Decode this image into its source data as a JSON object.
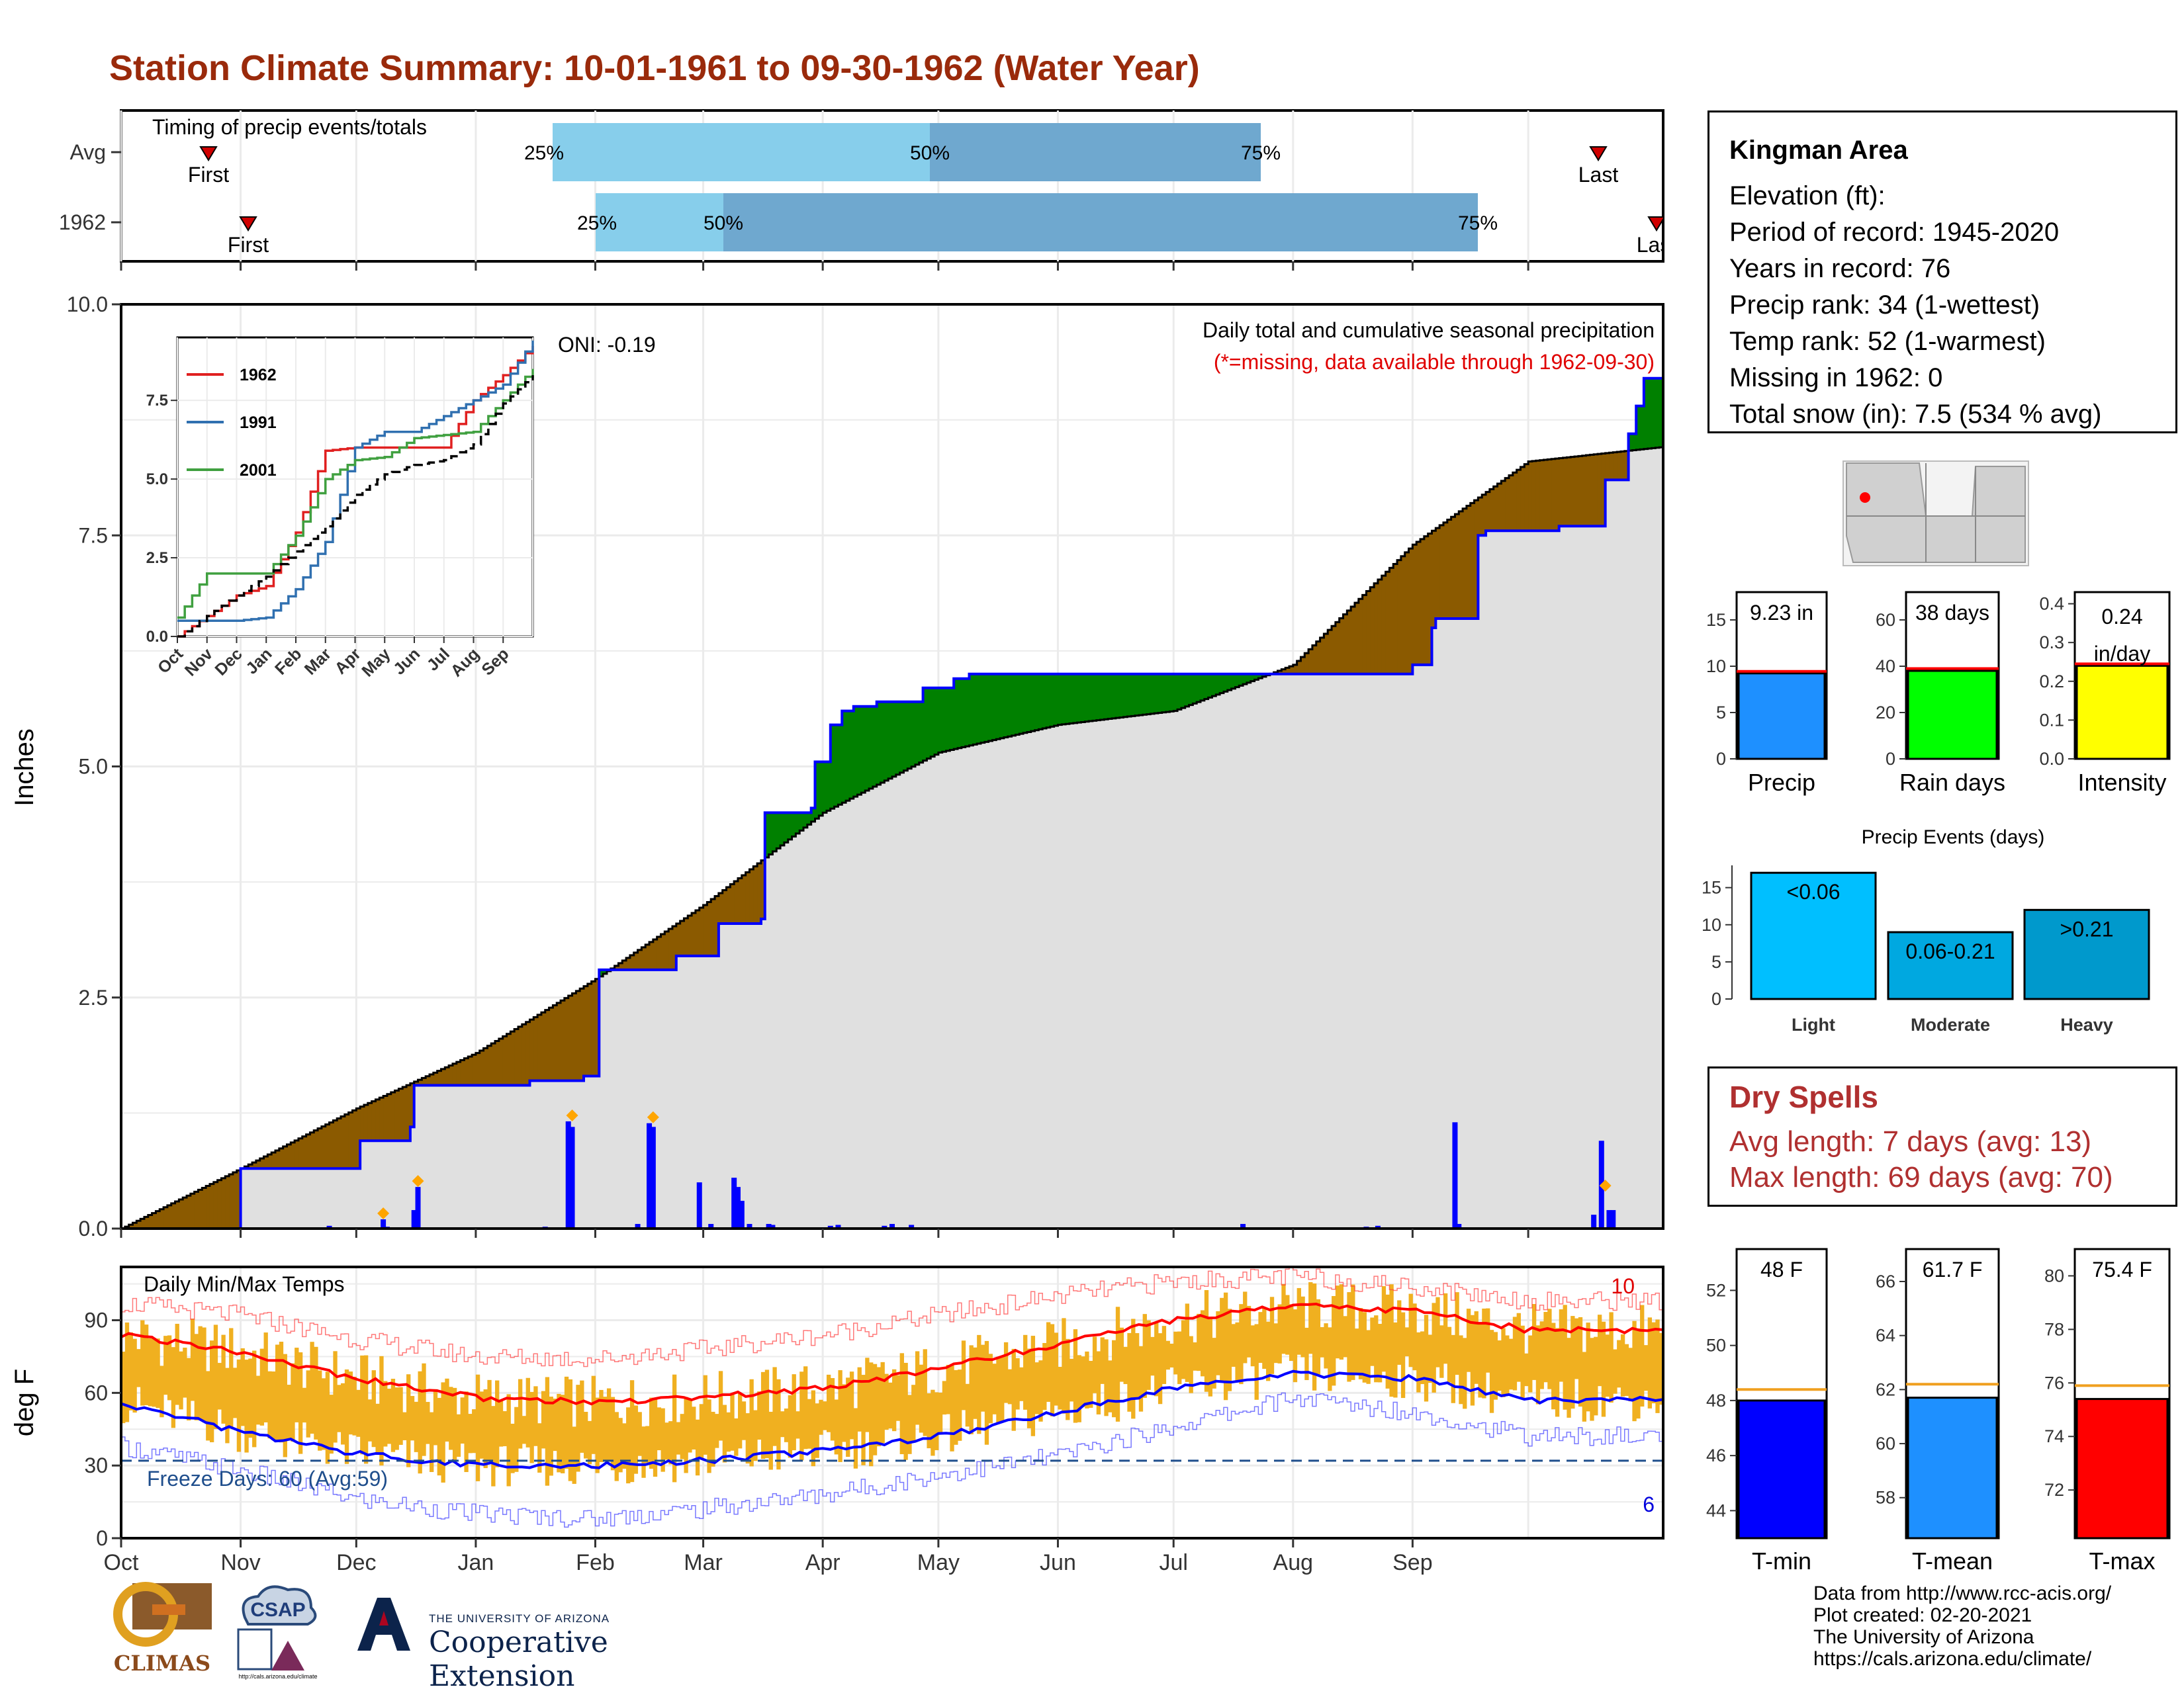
{
  "title": "Station Climate Summary: 10-01-1961 to 09-30-1962 (Water Year)",
  "timing": {
    "label": "Timing of precip events/totals",
    "rows": [
      {
        "name": "Avg",
        "first": "First",
        "last": "Last",
        "p25": "25%",
        "p50": "50%",
        "p75": "75%"
      },
      {
        "name": "1962",
        "first": "First",
        "last": "Last",
        "p25": "25%",
        "p50": "50%",
        "p75": "75%"
      }
    ]
  },
  "info": {
    "station": "Kingman Area",
    "elevation": "Elevation (ft):",
    "period": "Period of record: 1945-2020",
    "years": "Years in record: 76",
    "precip_rank": "Precip rank: 34 (1-wettest)",
    "temp_rank": "Temp rank: 52 (1-warmest)",
    "missing": "Missing in 1962: 0",
    "snow": "Total snow (in): 7.5 (534 % avg)"
  },
  "dry_spells": {
    "title": "Dry Spells",
    "avg": "Avg length: 7 days (avg: 13)",
    "max": "Max length: 69 days (avg: 70)"
  },
  "footer": {
    "line1": "Data from http://www.rcc-acis.org/",
    "line2": "Plot created: 02-20-2021",
    "line3": "The University of Arizona",
    "line4": "https://cals.arizona.edu/climate/"
  },
  "logos": {
    "climas": "CLIMAS",
    "csap": "CSAP",
    "csap_url": "http://cals.arizona.edu/climate",
    "ua_small": "THE UNIVERSITY OF ARIZONA",
    "ua_big": "Cooperative Extension"
  },
  "colors": {
    "title": "#9a2a0b",
    "surplus": "#008000",
    "deficit": "#8b5a00",
    "cum_line": "#0000ff",
    "normal_fill": "#e0e0e0",
    "daily_bar": "#0000ff",
    "temp_bar": "#f0b020",
    "tmax_avg": "#ff0000",
    "tmin_avg": "#0000ff",
    "q_light": "#87ceeb",
    "q_dark": "#6fa8cf"
  },
  "chart_data": [
    {
      "id": "precip",
      "type": "area",
      "ylabel": "Inches",
      "ylim": [
        0,
        10
      ],
      "yticks": [
        "0.0",
        "2.5",
        "5.0",
        "7.5",
        "10.0"
      ],
      "annotation1": "Daily total and cumulative seasonal precipitation",
      "annotation2": "(*=missing, data available through 1962-09-30)",
      "oni": "ONI: -0.19",
      "normal_cumulative_by_month": [
        0,
        0.65,
        1.3,
        1.9,
        2.7,
        3.5,
        4.5,
        5.15,
        5.45,
        5.6,
        6.1,
        7.4,
        8.3
      ],
      "cumulative_1962_steps": [
        [
          0,
          0
        ],
        [
          31,
          0.65
        ],
        [
          62,
          0.95
        ],
        [
          75,
          1.1
        ],
        [
          76,
          1.55
        ],
        [
          105,
          1.55
        ],
        [
          106,
          1.6
        ],
        [
          120,
          1.65
        ],
        [
          124,
          2.8
        ],
        [
          143,
          2.8
        ],
        [
          144,
          2.95
        ],
        [
          154,
          2.95
        ],
        [
          155,
          3.3
        ],
        [
          166,
          3.35
        ],
        [
          167,
          4.5
        ],
        [
          179,
          4.55
        ],
        [
          180,
          5.05
        ],
        [
          184,
          5.45
        ],
        [
          187,
          5.6
        ],
        [
          190,
          5.65
        ],
        [
          196,
          5.7
        ],
        [
          208,
          5.85
        ],
        [
          216,
          5.95
        ],
        [
          220,
          6.0
        ],
        [
          300,
          6.0
        ],
        [
          335,
          6.1
        ],
        [
          340,
          6.5
        ],
        [
          341,
          6.6
        ],
        [
          352,
          7.5
        ],
        [
          354,
          7.55
        ],
        [
          372,
          7.55
        ],
        [
          373,
          7.6
        ],
        [
          385,
          8.1
        ],
        [
          391,
          8.6
        ],
        [
          393,
          8.9
        ],
        [
          395,
          9.2
        ],
        [
          400,
          9.23
        ]
      ],
      "daily_bars": [
        {
          "day": 54,
          "v": 0.03
        },
        {
          "day": 68,
          "v": 0.1
        },
        {
          "day": 69,
          "v": 0.02
        },
        {
          "day": 74,
          "v": 0.01
        },
        {
          "day": 76,
          "v": 0.2
        },
        {
          "day": 77,
          "v": 0.45
        },
        {
          "day": 110,
          "v": 0.02
        },
        {
          "day": 116,
          "v": 1.16
        },
        {
          "day": 117,
          "v": 1.1
        },
        {
          "day": 134,
          "v": 0.05
        },
        {
          "day": 138,
          "v": 1.1
        },
        {
          "day": 137,
          "v": 1.14
        },
        {
          "day": 150,
          "v": 0.5
        },
        {
          "day": 153,
          "v": 0.05
        },
        {
          "day": 159,
          "v": 0.55
        },
        {
          "day": 160,
          "v": 0.45
        },
        {
          "day": 161,
          "v": 0.3
        },
        {
          "day": 163,
          "v": 0.05
        },
        {
          "day": 168,
          "v": 0.05
        },
        {
          "day": 169,
          "v": 0.04
        },
        {
          "day": 184,
          "v": 0.03
        },
        {
          "day": 186,
          "v": 0.04
        },
        {
          "day": 198,
          "v": 0.03
        },
        {
          "day": 200,
          "v": 0.05
        },
        {
          "day": 205,
          "v": 0.04
        },
        {
          "day": 291,
          "v": 0.05
        },
        {
          "day": 323,
          "v": 0.02
        },
        {
          "day": 326,
          "v": 0.03
        },
        {
          "day": 346,
          "v": 1.15
        },
        {
          "day": 347,
          "v": 0.05
        },
        {
          "day": 382,
          "v": 0.15
        },
        {
          "day": 384,
          "v": 0.95
        },
        {
          "day": 386,
          "v": 0.2
        },
        {
          "day": 387,
          "v": 0.2
        }
      ],
      "snow_marks": [
        {
          "day": 68,
          "v": 0.1
        },
        {
          "day": 117,
          "v": 1.16
        },
        {
          "day": 138,
          "v": 1.14
        },
        {
          "day": 77,
          "v": 0.45
        },
        {
          "day": 385,
          "v": 0.4
        }
      ],
      "x_labels": [
        "Oct",
        "Nov",
        "Dec",
        "Jan",
        "Feb",
        "Mar",
        "Apr",
        "May",
        "Jun",
        "Jul",
        "Aug",
        "Sep"
      ]
    },
    {
      "id": "inset",
      "type": "line",
      "ylim": [
        0,
        9.5
      ],
      "yticks": [
        "0.0",
        "2.5",
        "5.0",
        "7.5"
      ],
      "x_labels": [
        "Oct",
        "Nov",
        "Dec",
        "Jan",
        "Feb",
        "Mar",
        "Apr",
        "May",
        "Jun",
        "Jul",
        "Aug",
        "Sep"
      ],
      "series": [
        {
          "name": "1962",
          "color": "#e02020",
          "values": [
            0,
            0.65,
            1.3,
            1.6,
            3.3,
            5.9,
            6.0,
            6.0,
            6.0,
            6.0,
            7.5,
            8.3,
            9.23
          ]
        },
        {
          "name": "1991",
          "color": "#3070b0",
          "values": [
            0.5,
            0.5,
            0.5,
            0.6,
            1.5,
            3.0,
            6.0,
            6.5,
            6.5,
            7.0,
            7.5,
            8.0,
            9.4
          ]
        },
        {
          "name": "2001",
          "color": "#40a040",
          "values": [
            0.6,
            2.0,
            2.0,
            2.0,
            3.2,
            5.0,
            5.6,
            5.7,
            6.3,
            6.4,
            6.5,
            7.5,
            8.5
          ]
        },
        {
          "name": "avg",
          "color": "#000000",
          "dash": true,
          "values": [
            0,
            0.65,
            1.3,
            1.9,
            2.7,
            3.5,
            4.5,
            5.15,
            5.45,
            5.6,
            6.1,
            7.4,
            8.3
          ]
        }
      ]
    },
    {
      "id": "temps",
      "type": "line",
      "ylabel": "deg F",
      "ylim": [
        0,
        112
      ],
      "yticks": [
        "0",
        "30",
        "60",
        "90"
      ],
      "label": "Daily Min/Max Temps",
      "freeze": "Freeze Days: 60 (Avg:59)",
      "freeze_line": 32,
      "count_hot": "10",
      "count_cold": "6",
      "x_labels": [
        "Oct",
        "Nov",
        "Dec",
        "Jan",
        "Feb",
        "Mar",
        "Apr",
        "May",
        "Jun",
        "Jul",
        "Aug",
        "Sep"
      ],
      "tmax_avg_by_month": [
        84,
        77,
        66,
        58,
        56,
        58,
        62,
        70,
        80,
        90,
        96,
        94,
        86
      ],
      "tmin_avg_by_month": [
        56,
        44,
        35,
        30,
        30,
        32,
        36,
        42,
        52,
        62,
        68,
        66,
        57
      ],
      "record_high_by_month": [
        97,
        92,
        82,
        75,
        74,
        78,
        84,
        92,
        100,
        106,
        108,
        104,
        98
      ],
      "record_low_by_month": [
        38,
        28,
        16,
        10,
        8,
        12,
        18,
        26,
        34,
        46,
        58,
        52,
        42
      ]
    },
    {
      "id": "bar-precip",
      "type": "bar",
      "categories": [
        "Precip"
      ],
      "values": [
        9.23
      ],
      "avg": 9.45,
      "ylim": [
        0,
        18
      ],
      "yticks": [
        "0",
        "5",
        "10",
        "15"
      ],
      "label": "9.23 in",
      "fill": "#1e90ff"
    },
    {
      "id": "bar-raindays",
      "type": "bar",
      "categories": [
        "Rain days"
      ],
      "values": [
        38
      ],
      "avg": 39,
      "ylim": [
        0,
        72
      ],
      "yticks": [
        "0",
        "20",
        "40",
        "60"
      ],
      "label": "38 days",
      "fill": "#00ff00"
    },
    {
      "id": "bar-intensity",
      "type": "bar",
      "categories": [
        "Intensity"
      ],
      "values": [
        0.24
      ],
      "avg": 0.245,
      "ylim": [
        0,
        0.43
      ],
      "yticks": [
        "0.0",
        "0.1",
        "0.2",
        "0.3",
        "0.4"
      ],
      "label1": "0.24",
      "label2": "in/day",
      "fill": "#ffff00"
    },
    {
      "id": "bar-events",
      "type": "bar",
      "title": "Precip Events (days)",
      "categories": [
        "Light",
        "Moderate",
        "Heavy"
      ],
      "values": [
        17,
        9,
        12
      ],
      "labels": [
        "<0.06",
        "0.06-0.21",
        ">0.21"
      ],
      "ylim": [
        0,
        18
      ],
      "yticks": [
        "0",
        "5",
        "10",
        "15"
      ],
      "fills": [
        "#00bfff",
        "#00a8e0",
        "#0099cc"
      ]
    },
    {
      "id": "bar-tmin",
      "type": "bar",
      "categories": [
        "T-min"
      ],
      "values": [
        48
      ],
      "avg": 48.4,
      "ylim": [
        43,
        53.5
      ],
      "yticks": [
        "44",
        "46",
        "48",
        "50",
        "52"
      ],
      "label": "48 F",
      "fill": "#0000ff"
    },
    {
      "id": "bar-tmean",
      "type": "bar",
      "categories": [
        "T-mean"
      ],
      "values": [
        61.7
      ],
      "avg": 62.2,
      "ylim": [
        56.5,
        67.2
      ],
      "yticks": [
        "58",
        "60",
        "62",
        "64",
        "66"
      ],
      "label": "61.7 F",
      "fill": "#1e90ff"
    },
    {
      "id": "bar-tmax",
      "type": "bar",
      "categories": [
        "T-max"
      ],
      "values": [
        75.4
      ],
      "avg": 75.9,
      "ylim": [
        70.2,
        81.0
      ],
      "yticks": [
        "72",
        "74",
        "76",
        "78",
        "80"
      ],
      "label": "75.4 F",
      "fill": "#ff0000"
    }
  ]
}
